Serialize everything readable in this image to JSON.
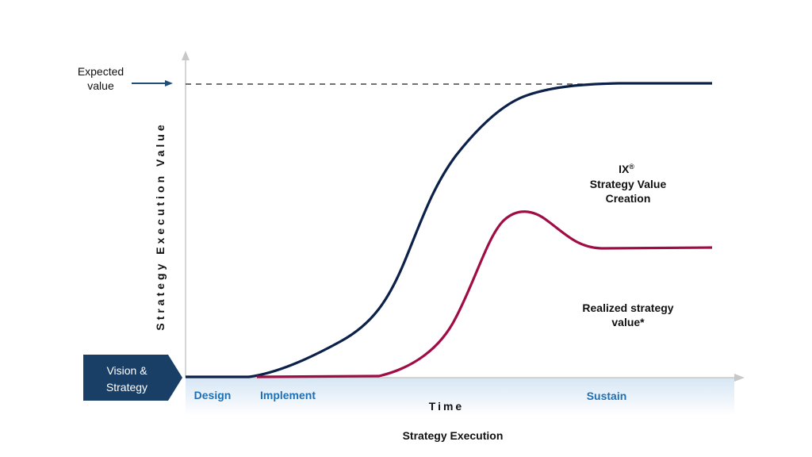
{
  "expected_value": {
    "line1": "Expected",
    "line2": "value"
  },
  "y_axis_label": "Strategy Execution Value",
  "x_axis_label": "Time",
  "footer_title": "Strategy Execution",
  "vision_box": {
    "line1": "Vision &",
    "line2": "Strategy"
  },
  "phases": {
    "design": "Design",
    "implement": "Implement",
    "sustain": "Sustain"
  },
  "ix_curve_label": {
    "brand": "IX",
    "reg": "®",
    "line2": "Strategy Value",
    "line3": "Creation"
  },
  "realized_curve_label": {
    "line1": "Realized strategy",
    "line2": "value*"
  },
  "colors": {
    "navy": "#0c2149",
    "crimson": "#a00d45",
    "arrow_blue": "#1f4e79",
    "phase_blue": "#1f6fb4",
    "vision_fill": "#1a3f66",
    "axis_gray": "#c8c8c8",
    "band_light": "#ddeaf6"
  }
}
